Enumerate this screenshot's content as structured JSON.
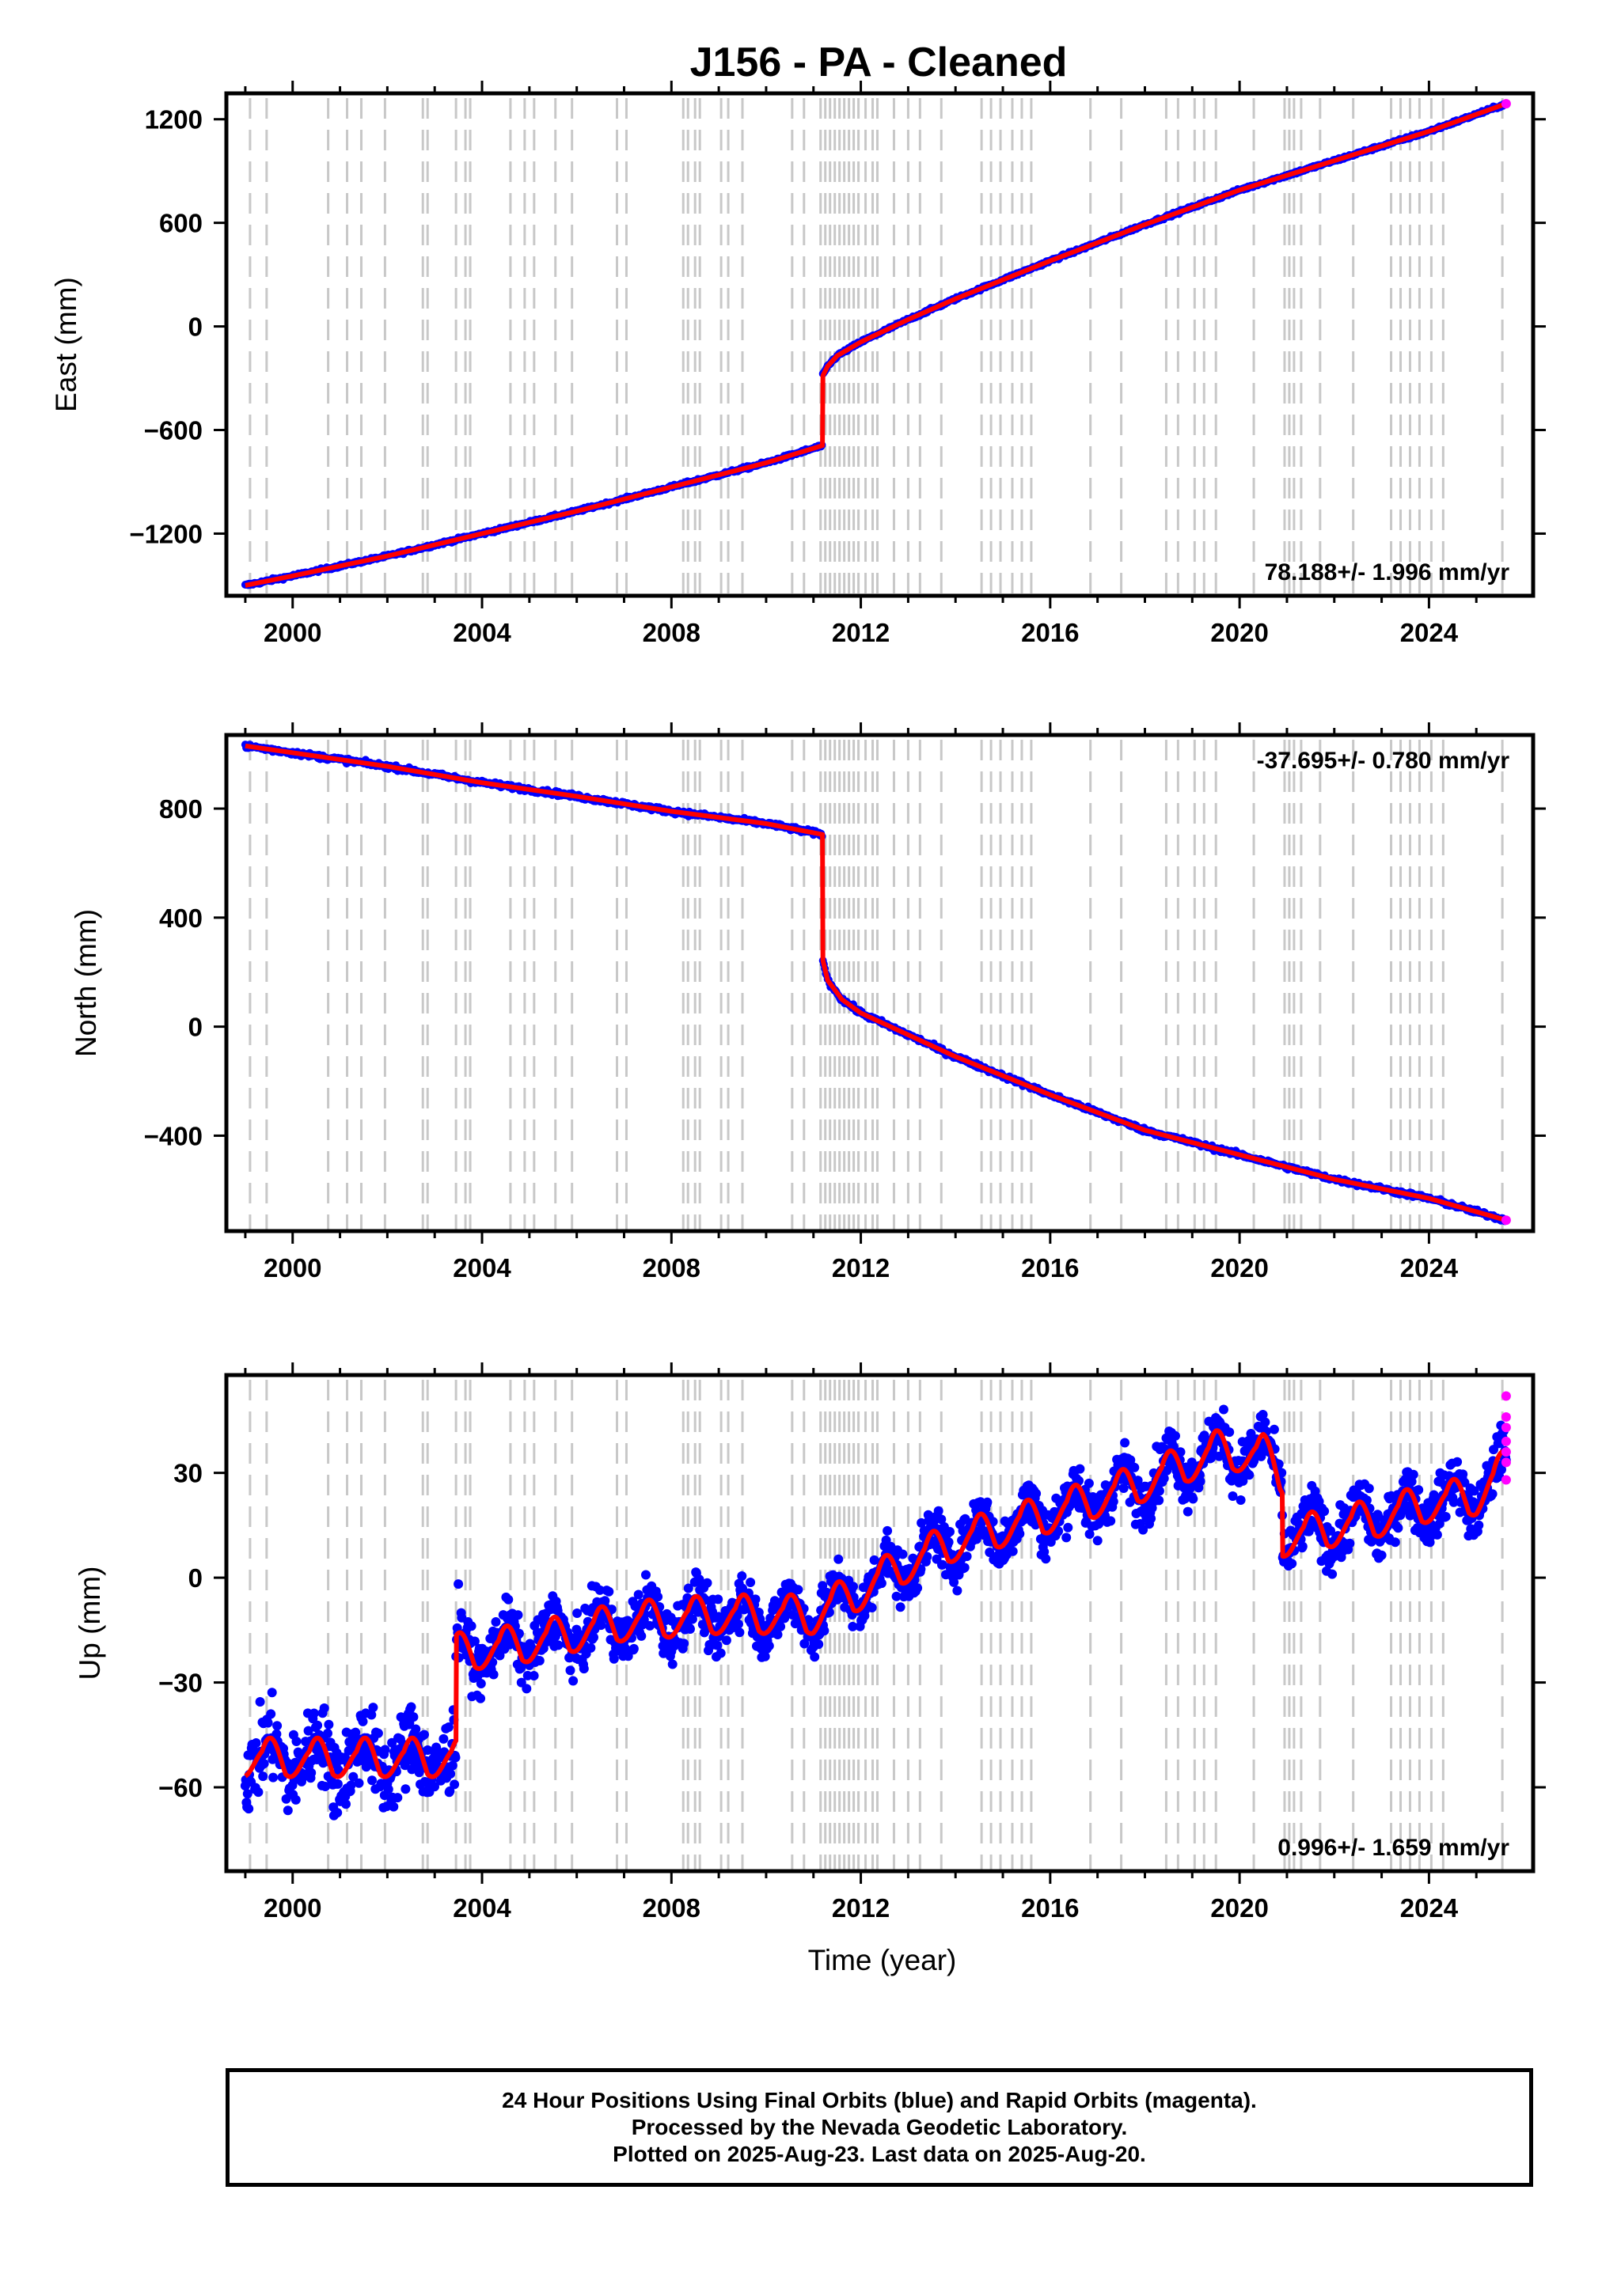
{
  "title": "J156  - PA - Cleaned",
  "colors": {
    "final_orbits": "#0000ff",
    "rapid_orbits": "#ff00ff",
    "model": "#ff0000",
    "equipment_lines": "#c8c8c8"
  },
  "footer": {
    "line1": "24 Hour Positions Using Final Orbits (blue) and Rapid Orbits (magenta).",
    "line2": "Processed by the Nevada Geodetic Laboratory.",
    "line3": "Plotted on 2025-Aug-23. Last data on 2025-Aug-20."
  },
  "chart_data": [
    {
      "type": "scatter",
      "name": "east",
      "ylabel": "East (mm)",
      "xlabel": "",
      "rate_label": "78.188+/- 1.996 mm/yr",
      "xlim": [
        1998.6,
        2026.2
      ],
      "ylim": [
        -1560,
        1350
      ],
      "xticks": [
        2000,
        2004,
        2008,
        2012,
        2016,
        2020,
        2024
      ],
      "yticks": [
        -1200,
        -600,
        0,
        600,
        1200
      ],
      "ytick_labels": [
        "−1200",
        "−600",
        "0",
        "600",
        "1200"
      ],
      "series": [
        {
          "type": "line",
          "x": [
            1999.0,
            2000.0,
            2002.0,
            2004.0,
            2006.0,
            2008.0,
            2010.0,
            2011.19,
            2011.19,
            2011.3,
            2011.5,
            2012.0,
            2013.0,
            2014.0,
            2016.0,
            2018.0,
            2020.0,
            2022.0,
            2024.0,
            2025.63
          ],
          "y": [
            -1500,
            -1445,
            -1330,
            -1200,
            -1070,
            -930,
            -790,
            -690,
            -290,
            -230,
            -170,
            -90,
            40,
            160,
            380,
            590,
            790,
            960,
            1130,
            1290
          ]
        }
      ]
    },
    {
      "type": "scatter",
      "name": "north",
      "ylabel": "North (mm)",
      "xlabel": "",
      "rate_label": "-37.695+/- 0.780 mm/yr",
      "xlim": [
        1998.6,
        2026.2
      ],
      "ylim": [
        -750,
        1070
      ],
      "xticks": [
        2000,
        2004,
        2008,
        2012,
        2016,
        2020,
        2024
      ],
      "yticks": [
        -400,
        0,
        400,
        800
      ],
      "ytick_labels": [
        "−400",
        "0",
        "400",
        "800"
      ],
      "series": [
        {
          "type": "line",
          "x": [
            1999.0,
            2000.0,
            2002.0,
            2004.0,
            2006.0,
            2008.0,
            2010.0,
            2011.19,
            2011.19,
            2011.3,
            2011.6,
            2012.0,
            2013.0,
            2014.0,
            2016.0,
            2018.0,
            2020.0,
            2022.0,
            2024.0,
            2025.63
          ],
          "y": [
            1030,
            1005,
            955,
            895,
            845,
            790,
            745,
            705,
            250,
            170,
            100,
            50,
            -30,
            -110,
            -250,
            -380,
            -470,
            -560,
            -630,
            -710
          ]
        }
      ]
    },
    {
      "type": "scatter",
      "name": "up",
      "ylabel": "Up (mm)",
      "xlabel": "Time (year)",
      "rate_label": "0.996+/- 1.659 mm/yr",
      "xlim": [
        1998.6,
        2026.2
      ],
      "ylim": [
        -84,
        58
      ],
      "xticks": [
        2000,
        2004,
        2008,
        2012,
        2016,
        2020,
        2024
      ],
      "yticks": [
        -60,
        -30,
        0,
        30
      ],
      "ytick_labels": [
        "−60",
        "−30",
        "0",
        "30"
      ],
      "seasonal_amplitude": 8,
      "series": [
        {
          "type": "line",
          "x": [
            1999.0,
            2003.45,
            2003.45,
            2005.0,
            2007.0,
            2009.0,
            2011.0,
            2012.0,
            2013.0,
            2014.0,
            2016.0,
            2018.0,
            2019.5,
            2020.5,
            2020.9,
            2020.9,
            2022.0,
            2023.0,
            2024.0,
            2025.0,
            2025.63
          ],
          "y": [
            -53,
            -53,
            -23,
            -20,
            -14,
            -12,
            -12,
            -5,
            3,
            9,
            17,
            26,
            35,
            34,
            28,
            10,
            13,
            16,
            20,
            22,
            30
          ]
        }
      ]
    }
  ],
  "equipment_change_years": [
    1999.1,
    1999.45,
    2000.75,
    2001.15,
    2001.45,
    2001.95,
    2002.75,
    2002.85,
    2003.45,
    2003.65,
    2003.75,
    2004.6,
    2004.9,
    2005.1,
    2005.55,
    2005.9,
    2006.85,
    2007.05,
    2008.25,
    2008.35,
    2008.5,
    2008.6,
    2009.05,
    2009.2,
    2009.5,
    2010.55,
    2010.8,
    2011.15,
    2011.25,
    2011.35,
    2011.45,
    2011.55,
    2011.65,
    2011.75,
    2011.85,
    2011.95,
    2012.1,
    2012.25,
    2012.35,
    2012.7,
    2013.0,
    2013.25,
    2013.7,
    2014.55,
    2014.75,
    2014.95,
    2015.2,
    2015.4,
    2015.6,
    2016.85,
    2017.5,
    2018.45,
    2018.7,
    2019.05,
    2019.25,
    2019.5,
    2020.3,
    2020.95,
    2021.05,
    2021.15,
    2021.3,
    2021.7,
    2022.4,
    2023.2,
    2023.4,
    2023.6,
    2023.8,
    2024.05,
    2024.3,
    2025.55
  ]
}
